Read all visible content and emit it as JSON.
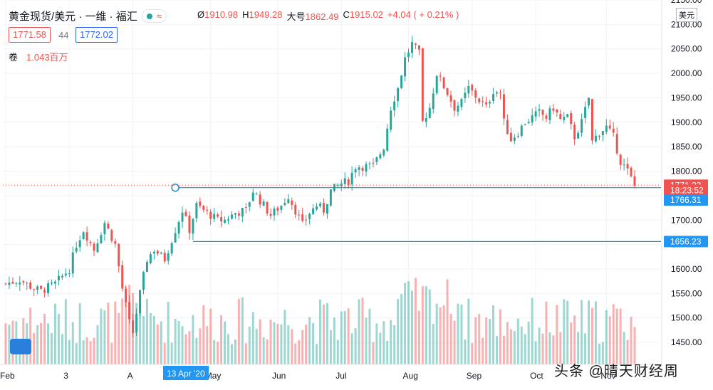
{
  "header": {
    "symbol": "黄金现货/美元 · 一维 · 福汇",
    "approx_icon": "≈",
    "open_label": "Ø",
    "open": "1910.98",
    "high_label": "H",
    "high": "1949.28",
    "low_label": "大号",
    "low": "1862.49",
    "close_label": "C",
    "close": "1915.02",
    "change": "+4.04 ( + 0.21% )"
  },
  "quote": {
    "bid": "1771.58",
    "spread": "44",
    "ask": "1772.02"
  },
  "volume": {
    "label": "卷",
    "value": "1.043百万"
  },
  "currency": "美元",
  "watermark": "头条 @晴天财经周",
  "colors": {
    "up": "#26a69a",
    "down": "#ef5350",
    "accent": "#2196f3",
    "grid": "#f0f3fa",
    "axis_text": "#131722",
    "level_line": "#1e88c8"
  },
  "chart_data": {
    "type": "candlestick",
    "title": "",
    "ylim": [
      1405,
      2150
    ],
    "yticks": [
      1450,
      1500,
      1550,
      1600,
      1650,
      1700,
      1750,
      1800,
      1850,
      1900,
      1950,
      2000,
      2050,
      2100,
      2150
    ],
    "ytick_labels": [
      "1450.00",
      "1500.00",
      "1550.00",
      "1600.00",
      "1650.00",
      "1700.00",
      "1750.00",
      "1800.00",
      "1850.00",
      "1900.00",
      "1950.00",
      "2000.00",
      "2050.00",
      "2100.00",
      "2150.00"
    ],
    "x_labels": [
      {
        "text": "Feb",
        "day": 0
      },
      {
        "text": "3",
        "day": 18
      },
      {
        "text": "A",
        "day": 36
      },
      {
        "text": "May",
        "day": 58
      },
      {
        "text": "Jun",
        "day": 77
      },
      {
        "text": "Jul",
        "day": 95
      },
      {
        "text": "Aug",
        "day": 114
      },
      {
        "text": "Sep",
        "day": 132
      },
      {
        "text": "Oct",
        "day": 150
      },
      {
        "text": "Nov",
        "day": 170
      }
    ],
    "x_highlight": {
      "text": "13 Apr '20",
      "day": 51
    },
    "price_labels": [
      {
        "text": "1771.23",
        "price": 1771.23,
        "color": "#ef5350"
      },
      {
        "text": "18:23:52",
        "price": 1761,
        "color": "#ef5350"
      },
      {
        "text": "1766.31",
        "price": 1741,
        "color": "#2196f3"
      },
      {
        "text": "1656.23",
        "price": 1656.23,
        "color": "#2196f3"
      }
    ],
    "horizontal_lines": [
      {
        "price": 1766.31,
        "from_day": 48,
        "style": "solid",
        "marker": "circle"
      },
      {
        "price": 1771.23,
        "from_day": 0,
        "style": "dotted"
      },
      {
        "price": 1656.23,
        "from_day": 53,
        "style": "solid"
      }
    ],
    "close_points": [
      [
        0,
        1570
      ],
      [
        4,
        1578
      ],
      [
        8,
        1560
      ],
      [
        10,
        1555
      ],
      [
        14,
        1570
      ],
      [
        18,
        1600
      ],
      [
        20,
        1650
      ],
      [
        22,
        1680
      ],
      [
        25,
        1640
      ],
      [
        28,
        1695
      ],
      [
        31,
        1650
      ],
      [
        33,
        1560
      ],
      [
        35,
        1490
      ],
      [
        36,
        1470
      ],
      [
        38,
        1550
      ],
      [
        40,
        1620
      ],
      [
        42,
        1640
      ],
      [
        45,
        1620
      ],
      [
        48,
        1680
      ],
      [
        50,
        1720
      ],
      [
        52,
        1680
      ],
      [
        54,
        1730
      ],
      [
        56,
        1720
      ],
      [
        58,
        1710
      ],
      [
        60,
        1700
      ],
      [
        62,
        1700
      ],
      [
        65,
        1715
      ],
      [
        68,
        1720
      ],
      [
        70,
        1760
      ],
      [
        72,
        1740
      ],
      [
        75,
        1710
      ],
      [
        78,
        1730
      ],
      [
        80,
        1750
      ],
      [
        82,
        1720
      ],
      [
        84,
        1690
      ],
      [
        86,
        1715
      ],
      [
        88,
        1730
      ],
      [
        90,
        1720
      ],
      [
        92,
        1760
      ],
      [
        95,
        1775
      ],
      [
        97,
        1780
      ],
      [
        99,
        1810
      ],
      [
        102,
        1810
      ],
      [
        104,
        1810
      ],
      [
        107,
        1850
      ],
      [
        109,
        1930
      ],
      [
        111,
        1970
      ],
      [
        113,
        2030
      ],
      [
        115,
        2060
      ],
      [
        117,
        2040
      ],
      [
        118,
        1900
      ],
      [
        120,
        1930
      ],
      [
        122,
        2000
      ],
      [
        125,
        1960
      ],
      [
        127,
        1930
      ],
      [
        129,
        1940
      ],
      [
        131,
        1970
      ],
      [
        134,
        1945
      ],
      [
        136,
        1930
      ],
      [
        138,
        1965
      ],
      [
        140,
        1960
      ],
      [
        141,
        1900
      ],
      [
        143,
        1865
      ],
      [
        145,
        1880
      ],
      [
        147,
        1900
      ],
      [
        149,
        1910
      ],
      [
        151,
        1920
      ],
      [
        153,
        1910
      ],
      [
        155,
        1930
      ],
      [
        157,
        1905
      ],
      [
        159,
        1910
      ],
      [
        161,
        1870
      ],
      [
        163,
        1900
      ],
      [
        165,
        1950
      ],
      [
        166,
        1860
      ],
      [
        168,
        1880
      ],
      [
        170,
        1890
      ],
      [
        172,
        1870
      ],
      [
        174,
        1820
      ],
      [
        176,
        1800
      ],
      [
        178,
        1770
      ]
    ],
    "volume_range": [
      0,
      300
    ]
  }
}
